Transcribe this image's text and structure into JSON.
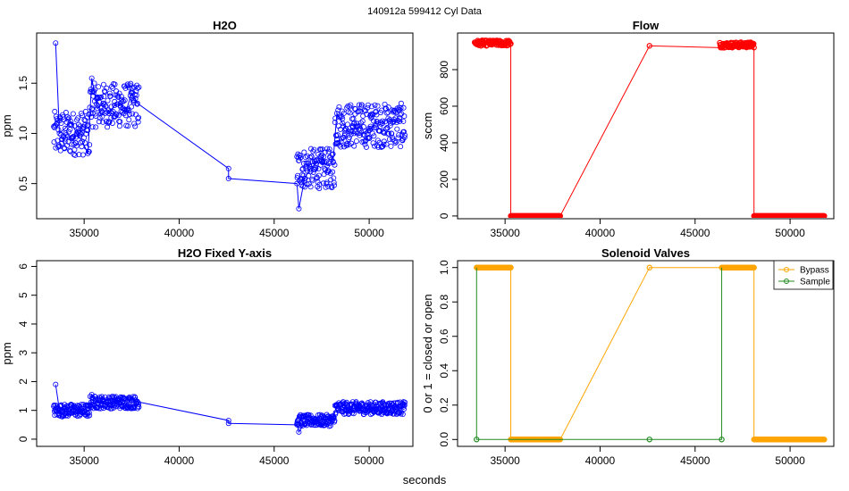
{
  "header": {
    "title": "140912a    599412   Cyl Data"
  },
  "footer": {
    "xlabel": "seconds"
  },
  "chart_data": [
    {
      "type": "scatter",
      "title": "H2O",
      "xlabel": "",
      "ylabel": "ppm",
      "xlim": [
        32500,
        52300
      ],
      "ylim": [
        0.15,
        2.0
      ],
      "xticks": [
        35000,
        40000,
        45000,
        50000
      ],
      "yticks": [
        0.5,
        1.0,
        1.5
      ],
      "color": "#0000ff",
      "segments": [
        [
          33500,
          1.9
        ],
        [
          33700,
          1.0
        ],
        [
          34000,
          1.05
        ],
        [
          34300,
          1.12
        ],
        [
          34600,
          1.0
        ],
        [
          34900,
          0.92
        ],
        [
          35200,
          0.8
        ],
        [
          35400,
          1.55
        ],
        [
          35700,
          1.25
        ],
        [
          36000,
          1.3
        ],
        [
          36300,
          1.2
        ],
        [
          36600,
          1.28
        ],
        [
          36900,
          1.3
        ],
        [
          37200,
          1.22
        ],
        [
          37500,
          1.4
        ],
        [
          37800,
          1.3
        ],
        [
          42600,
          0.65
        ],
        [
          42600,
          0.55
        ],
        [
          46200,
          0.5
        ],
        [
          46300,
          0.25
        ],
        [
          46600,
          0.55
        ],
        [
          46900,
          0.65
        ],
        [
          47200,
          0.7
        ],
        [
          47500,
          0.72
        ],
        [
          47800,
          0.68
        ],
        [
          48100,
          0.72
        ],
        [
          48300,
          1.2
        ],
        [
          48600,
          1.1
        ],
        [
          48900,
          1.02
        ],
        [
          49200,
          1.0
        ],
        [
          49500,
          0.98
        ],
        [
          49800,
          1.02
        ],
        [
          50100,
          1.05
        ],
        [
          50400,
          1.12
        ],
        [
          50700,
          1.1
        ],
        [
          51000,
          1.15
        ],
        [
          51300,
          1.12
        ],
        [
          51600,
          1.12
        ],
        [
          51800,
          1.12
        ]
      ],
      "clusters": [
        {
          "x_start": 33400,
          "x_end": 35300,
          "y_center": 1.0,
          "spread": 0.22
        },
        {
          "x_start": 35300,
          "x_end": 37900,
          "y_center": 1.28,
          "spread": 0.22
        },
        {
          "x_start": 46200,
          "x_end": 48200,
          "y_center": 0.65,
          "spread": 0.2
        },
        {
          "x_start": 48200,
          "x_end": 51900,
          "y_center": 1.08,
          "spread": 0.22
        }
      ]
    },
    {
      "type": "scatter",
      "title": "Flow",
      "xlabel": "",
      "ylabel": "sccm",
      "xlim": [
        32500,
        52300
      ],
      "ylim": [
        -15,
        1000
      ],
      "xticks": [
        35000,
        40000,
        45000,
        50000
      ],
      "yticks": [
        0,
        200,
        400,
        600,
        800
      ],
      "color": "#ff0000",
      "line": [
        [
          33400,
          940
        ],
        [
          33500,
          960
        ],
        [
          34000,
          950
        ],
        [
          34500,
          945
        ],
        [
          35000,
          940
        ],
        [
          35300,
          940
        ],
        [
          35300,
          0
        ],
        [
          37900,
          0
        ],
        [
          42600,
          930
        ],
        [
          46300,
          920
        ],
        [
          46400,
          955
        ],
        [
          47000,
          935
        ],
        [
          48000,
          930
        ],
        [
          48100,
          930
        ],
        [
          48100,
          0
        ],
        [
          51800,
          0
        ]
      ],
      "clusters": [
        {
          "x_start": 33400,
          "x_end": 35300,
          "y_center": 945,
          "spread": 15
        },
        {
          "x_start": 35300,
          "x_end": 37900,
          "y_center": 0,
          "spread": 0
        },
        {
          "x_start": 46300,
          "x_end": 48100,
          "y_center": 935,
          "spread": 15
        },
        {
          "x_start": 48100,
          "x_end": 51800,
          "y_center": 0,
          "spread": 0
        }
      ]
    },
    {
      "type": "scatter",
      "title": "H2O Fixed Y-axis",
      "xlabel": "",
      "ylabel": "ppm",
      "xlim": [
        32500,
        52300
      ],
      "ylim": [
        -0.25,
        6.2
      ],
      "xticks": [
        35000,
        40000,
        45000,
        50000
      ],
      "yticks": [
        0,
        1,
        2,
        3,
        4,
        5,
        6
      ],
      "color": "#0000ff",
      "segments": [
        [
          33500,
          1.9
        ],
        [
          33700,
          1.0
        ],
        [
          34000,
          1.05
        ],
        [
          34300,
          1.12
        ],
        [
          34600,
          1.0
        ],
        [
          34900,
          0.92
        ],
        [
          35200,
          0.8
        ],
        [
          35400,
          1.55
        ],
        [
          35700,
          1.25
        ],
        [
          36000,
          1.3
        ],
        [
          36300,
          1.2
        ],
        [
          36600,
          1.28
        ],
        [
          36900,
          1.3
        ],
        [
          37200,
          1.22
        ],
        [
          37500,
          1.4
        ],
        [
          37800,
          1.3
        ],
        [
          42600,
          0.65
        ],
        [
          42600,
          0.55
        ],
        [
          46200,
          0.5
        ],
        [
          46300,
          0.25
        ],
        [
          46600,
          0.55
        ],
        [
          46900,
          0.65
        ],
        [
          47200,
          0.7
        ],
        [
          47500,
          0.72
        ],
        [
          47800,
          0.68
        ],
        [
          48100,
          0.72
        ],
        [
          48300,
          1.2
        ],
        [
          48600,
          1.1
        ],
        [
          48900,
          1.02
        ],
        [
          49200,
          1.0
        ],
        [
          49500,
          0.98
        ],
        [
          49800,
          1.02
        ],
        [
          50100,
          1.05
        ],
        [
          50400,
          1.12
        ],
        [
          50700,
          1.1
        ],
        [
          51000,
          1.15
        ],
        [
          51300,
          1.12
        ],
        [
          51600,
          1.12
        ],
        [
          51800,
          1.12
        ]
      ],
      "clusters": [
        {
          "x_start": 33400,
          "x_end": 35300,
          "y_center": 1.0,
          "spread": 0.22
        },
        {
          "x_start": 35300,
          "x_end": 37900,
          "y_center": 1.28,
          "spread": 0.22
        },
        {
          "x_start": 46200,
          "x_end": 48200,
          "y_center": 0.65,
          "spread": 0.2
        },
        {
          "x_start": 48200,
          "x_end": 51900,
          "y_center": 1.08,
          "spread": 0.22
        }
      ]
    },
    {
      "type": "line",
      "title": "Solenoid Valves",
      "xlabel": "",
      "ylabel": "0 or 1 = closed or open",
      "xlim": [
        32500,
        52300
      ],
      "ylim": [
        -0.04,
        1.04
      ],
      "xticks": [
        35000,
        40000,
        45000,
        50000
      ],
      "yticks": [
        0.0,
        0.2,
        0.4,
        0.6,
        0.8,
        1.0
      ],
      "legend_position": "top-right",
      "series": [
        {
          "name": "Bypass",
          "color": "#ffa500",
          "line": [
            [
              33500,
              1
            ],
            [
              35300,
              1
            ],
            [
              35300,
              0
            ],
            [
              37900,
              0
            ],
            [
              42600,
              1
            ],
            [
              46400,
              1
            ],
            [
              48100,
              1
            ],
            [
              48100,
              0
            ],
            [
              51800,
              0
            ]
          ],
          "runs": [
            [
              33500,
              35300,
              1
            ],
            [
              35300,
              37900,
              0
            ],
            [
              46400,
              48100,
              1
            ],
            [
              48100,
              51800,
              0
            ]
          ],
          "points": [
            [
              42600,
              1
            ]
          ]
        },
        {
          "name": "Sample",
          "color": "#228b22",
          "line": [
            [
              33500,
              0
            ],
            [
              33500,
              1
            ],
            [
              33500,
              0
            ],
            [
              37900,
              0
            ],
            [
              42600,
              0
            ],
            [
              46400,
              0
            ],
            [
              46400,
              1
            ],
            [
              46400,
              0
            ]
          ],
          "runs": [],
          "points": [
            [
              33500,
              0
            ],
            [
              42600,
              0
            ],
            [
              46400,
              0
            ]
          ]
        }
      ]
    }
  ]
}
